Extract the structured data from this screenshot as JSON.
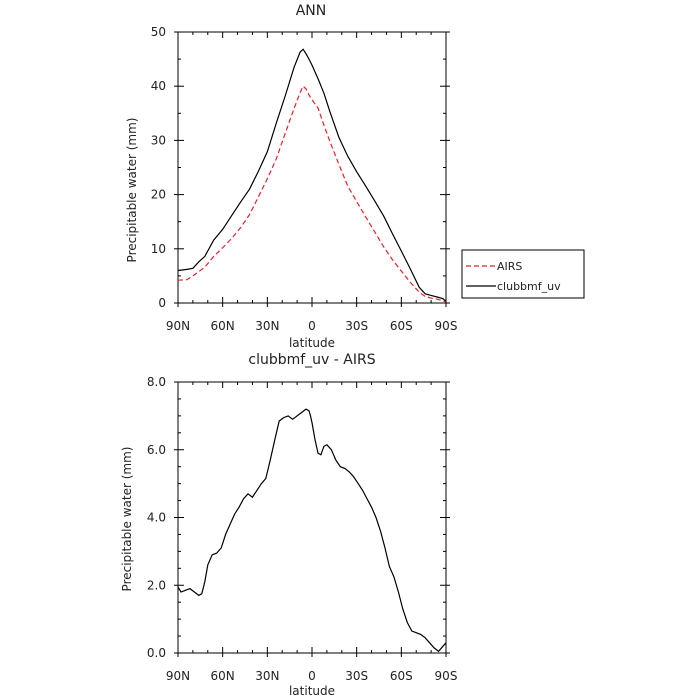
{
  "chart_data": [
    {
      "type": "line",
      "title": "ANN",
      "xlabel": "latitude",
      "ylabel": "Precipitable water (mm)",
      "xticks": [
        "90N",
        "60N",
        "30N",
        "0",
        "30S",
        "60S",
        "90S"
      ],
      "yticks": [
        "0",
        "10",
        "20",
        "30",
        "40",
        "50"
      ],
      "ylim": [
        0,
        50
      ],
      "legend": "right",
      "series": [
        {
          "name": "AIRS",
          "color": "#e8202a",
          "dash": "dashed",
          "x": [
            -90,
            -84,
            -80,
            -76,
            -72,
            -66,
            -60,
            -54,
            -48,
            -42,
            -36,
            -30,
            -24,
            -18,
            -12,
            -8,
            -6,
            -4,
            -2,
            0,
            4,
            8,
            12,
            18,
            24,
            30,
            36,
            42,
            48,
            54,
            60,
            66,
            72,
            76,
            80,
            84,
            88,
            90
          ],
          "y": [
            4.2,
            4.3,
            5.0,
            5.8,
            6.6,
            8.6,
            10.2,
            11.9,
            13.9,
            16.3,
            19.6,
            22.9,
            26.6,
            31.3,
            35.9,
            38.8,
            40.0,
            39.5,
            38.4,
            37.5,
            36.0,
            32.8,
            29.8,
            25.6,
            21.6,
            18.7,
            15.9,
            13.2,
            10.4,
            8.0,
            5.9,
            3.8,
            2.0,
            1.2,
            0.9,
            0.7,
            0.4,
            0.2
          ]
        },
        {
          "name": "clubbmf_uv",
          "color": "#000000",
          "dash": "solid",
          "x": [
            -90,
            -84,
            -80,
            -76,
            -72,
            -66,
            -60,
            -54,
            -48,
            -42,
            -36,
            -30,
            -24,
            -18,
            -12,
            -8,
            -6,
            -4,
            -2,
            0,
            4,
            8,
            12,
            18,
            24,
            30,
            36,
            42,
            48,
            54,
            60,
            66,
            72,
            76,
            80,
            84,
            88,
            90
          ],
          "y": [
            6.0,
            6.2,
            6.4,
            7.6,
            8.6,
            11.6,
            13.6,
            16.1,
            18.6,
            21.0,
            24.3,
            27.9,
            33.2,
            38.2,
            43.5,
            46.3,
            46.8,
            46.0,
            45.0,
            43.9,
            41.4,
            38.7,
            35.3,
            30.6,
            27.1,
            24.2,
            21.6,
            18.9,
            16.1,
            12.8,
            9.6,
            6.3,
            2.9,
            1.7,
            1.4,
            1.1,
            0.8,
            0.3
          ]
        }
      ]
    },
    {
      "type": "line",
      "title": "clubbmf_uv - AIRS",
      "xlabel": "latitude",
      "ylabel": "Precipitable water (mm)",
      "xticks": [
        "90N",
        "60N",
        "30N",
        "0",
        "30S",
        "60S",
        "90S"
      ],
      "yticks": [
        "0.0",
        "2.0",
        "4.0",
        "6.0",
        "8.0"
      ],
      "ylim": [
        0,
        8
      ],
      "series": [
        {
          "color": "#000000",
          "x": [
            -90,
            -88,
            -85,
            -82,
            -79,
            -76,
            -74,
            -72,
            -70,
            -67,
            -64,
            -61,
            -58,
            -55,
            -52,
            -49,
            -46,
            -43,
            -40,
            -37,
            -34,
            -31,
            -28,
            -25,
            -22,
            -19,
            -16,
            -13,
            -10,
            -7,
            -4,
            -2,
            -1,
            0,
            2,
            4,
            6,
            8,
            10,
            13,
            16,
            19,
            22,
            25,
            28,
            31,
            34,
            37,
            40,
            43,
            46,
            49,
            52,
            55,
            58,
            61,
            64,
            67,
            70,
            73,
            76,
            79,
            82,
            85,
            88,
            90
          ],
          "y": [
            1.95,
            1.8,
            1.85,
            1.9,
            1.8,
            1.7,
            1.75,
            2.1,
            2.6,
            2.9,
            2.95,
            3.1,
            3.5,
            3.8,
            4.1,
            4.3,
            4.55,
            4.7,
            4.6,
            4.8,
            5.0,
            5.15,
            5.7,
            6.3,
            6.85,
            6.95,
            7.0,
            6.9,
            7.0,
            7.1,
            7.2,
            7.15,
            7.0,
            6.8,
            6.3,
            5.9,
            5.85,
            6.1,
            6.15,
            6.0,
            5.7,
            5.5,
            5.45,
            5.35,
            5.2,
            5.0,
            4.8,
            4.55,
            4.3,
            4.0,
            3.6,
            3.1,
            2.55,
            2.25,
            1.8,
            1.3,
            0.9,
            0.65,
            0.6,
            0.55,
            0.45,
            0.3,
            0.15,
            0.05,
            0.2,
            0.3
          ]
        }
      ]
    }
  ]
}
